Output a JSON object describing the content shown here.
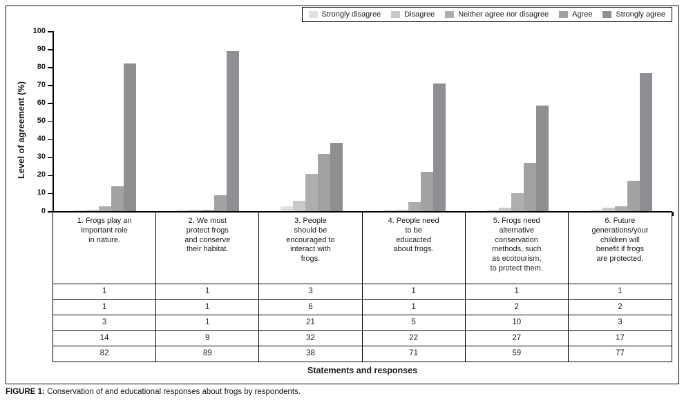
{
  "figure_caption": {
    "label": "FIGURE 1:",
    "text": "Conservation of and educational responses about frogs by respondents."
  },
  "chart_data": {
    "type": "bar",
    "ylabel": "Level of agreement (%)",
    "xlabel": "Statements and responses",
    "ylim": [
      0,
      100
    ],
    "ytick_step": 10,
    "grid": false,
    "legend_position": "top-right",
    "categories": [
      "1. Frogs play an\nimportant role\nin nature.",
      "2. We must\nprotect frogs\nand conserve\ntheir habitat.",
      "3. People\nshould be\nencouraged to\ninteract with\nfrogs.",
      "4. People need\nto be\neducacted\nabout frogs.",
      "5. Frogs need\nalternative\nconservation\nmethods, such\nas ecotourism,\nto protect them.",
      "6. Future\ngenerations/your\nchildren will\nbenefit if frogs\nare protected."
    ],
    "series": [
      {
        "name": "Strongly disagree",
        "color": "#e0e0e0",
        "values": [
          1,
          1,
          3,
          1,
          1,
          1
        ]
      },
      {
        "name": "Disagree",
        "color": "#c9c9c9",
        "values": [
          1,
          1,
          6,
          1,
          2,
          2
        ]
      },
      {
        "name": "Neither agree nor disagree",
        "color": "#aeaeae",
        "values": [
          3,
          1,
          21,
          5,
          10,
          3
        ]
      },
      {
        "name": "Agree",
        "color": "#a2a2a2",
        "values": [
          14,
          9,
          32,
          22,
          27,
          17
        ]
      },
      {
        "name": "Strongly agree",
        "color": "#8e8f93",
        "values": [
          82,
          89,
          38,
          71,
          59,
          77
        ]
      }
    ]
  }
}
